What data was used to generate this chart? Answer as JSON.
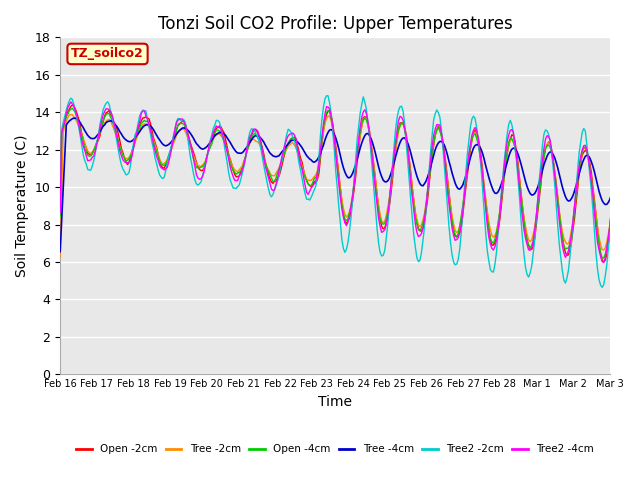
{
  "title": "Tonzi Soil CO2 Profile: Upper Temperatures",
  "xlabel": "Time",
  "ylabel": "Soil Temperature (C)",
  "ylim": [
    0,
    18
  ],
  "yticks": [
    0,
    2,
    4,
    6,
    8,
    10,
    12,
    14,
    16,
    18
  ],
  "date_labels": [
    "Feb 16",
    "Feb 17",
    "Feb 18",
    "Feb 19",
    "Feb 20",
    "Feb 21",
    "Feb 22",
    "Feb 23",
    "Feb 24",
    "Feb 25",
    "Feb 26",
    "Feb 27",
    "Feb 28",
    "Mar 1",
    "Mar 2",
    "Mar 3"
  ],
  "legend_entries": [
    "Open -2cm",
    "Tree -2cm",
    "Open -4cm",
    "Tree -4cm",
    "Tree2 -2cm",
    "Tree2 -4cm"
  ],
  "legend_colors": [
    "#ff0000",
    "#ff8c00",
    "#00cc00",
    "#0000cc",
    "#00cccc",
    "#ff00ff"
  ],
  "watermark_text": "TZ_soilco2",
  "watermark_color": "#cc0000",
  "watermark_bg": "#ffffcc",
  "background_color": "#e8e8e8",
  "grid_color": "#ffffff",
  "title_fontsize": 12,
  "axis_fontsize": 10
}
